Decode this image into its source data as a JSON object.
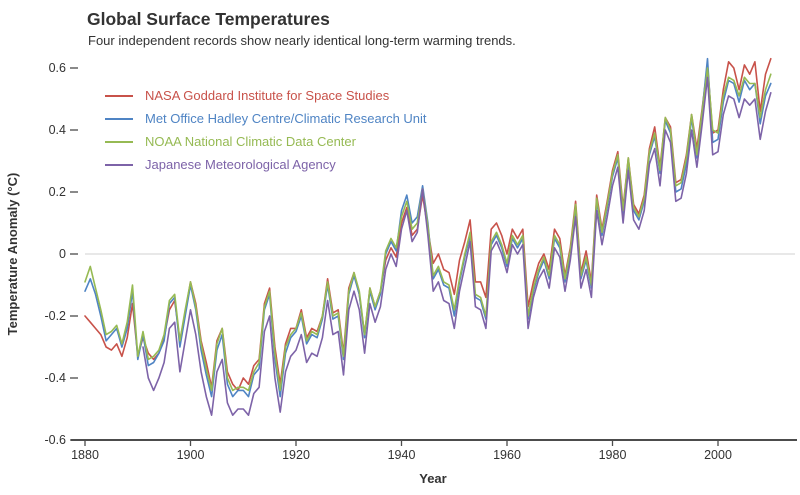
{
  "chart_data": {
    "type": "line",
    "title": "Global Surface Temperatures",
    "subtitle": "Four independent records show nearly identical long-term warming trends.",
    "xlabel": "Year",
    "ylabel": "Temperature Anomaly (°C)",
    "xlim": [
      1880,
      2013
    ],
    "ylim": [
      -0.6,
      0.65
    ],
    "grid": "horizontal zero line only",
    "legend_position": "top-left",
    "zero_line_color": "#d9d9d9",
    "axis_color": "#4c4c4c",
    "text_color": "#333333",
    "x_tick_labels": [
      "1880",
      "1900",
      "1920",
      "1940",
      "1960",
      "1980",
      "2000"
    ],
    "y_tick_labels": [
      "0.6",
      "0.4",
      "0.2",
      "0",
      "-0.2",
      "-0.4",
      "-0.6"
    ],
    "x_end_year": 2010,
    "series": [
      {
        "name": "NASA Goddard Institute for Space Studies",
        "color": "#c8524a",
        "start_year": 1880,
        "values": [
          -0.2,
          -0.22,
          -0.24,
          -0.26,
          -0.3,
          -0.31,
          -0.29,
          -0.33,
          -0.27,
          -0.16,
          -0.33,
          -0.27,
          -0.32,
          -0.34,
          -0.32,
          -0.27,
          -0.18,
          -0.15,
          -0.28,
          -0.19,
          -0.09,
          -0.16,
          -0.28,
          -0.35,
          -0.43,
          -0.28,
          -0.24,
          -0.38,
          -0.42,
          -0.44,
          -0.4,
          -0.42,
          -0.36,
          -0.34,
          -0.16,
          -0.11,
          -0.3,
          -0.42,
          -0.29,
          -0.24,
          -0.24,
          -0.18,
          -0.27,
          -0.24,
          -0.25,
          -0.2,
          -0.08,
          -0.19,
          -0.18,
          -0.32,
          -0.11,
          -0.06,
          -0.13,
          -0.26,
          -0.11,
          -0.17,
          -0.12,
          -0.02,
          0.02,
          -0.01,
          0.1,
          0.15,
          0.06,
          0.08,
          0.19,
          0.08,
          -0.03,
          0.0,
          -0.05,
          -0.06,
          -0.13,
          -0.02,
          0.04,
          0.11,
          -0.09,
          -0.09,
          -0.14,
          0.08,
          0.1,
          0.06,
          0.0,
          0.08,
          0.05,
          0.08,
          -0.17,
          -0.09,
          -0.03,
          0.0,
          -0.05,
          0.08,
          0.05,
          -0.07,
          0.02,
          0.17,
          -0.06,
          0.01,
          -0.09,
          0.19,
          0.08,
          0.17,
          0.27,
          0.33,
          0.15,
          0.31,
          0.16,
          0.13,
          0.19,
          0.34,
          0.41,
          0.28,
          0.44,
          0.41,
          0.23,
          0.24,
          0.32,
          0.45,
          0.34,
          0.47,
          0.61,
          0.39,
          0.4,
          0.53,
          0.62,
          0.6,
          0.53,
          0.61,
          0.58,
          0.62,
          0.46,
          0.58,
          0.63
        ]
      },
      {
        "name": "Met Office Hadley Centre/Climatic Research Unit",
        "color": "#4f84c4",
        "start_year": 1880,
        "values": [
          -0.12,
          -0.08,
          -0.13,
          -0.2,
          -0.28,
          -0.26,
          -0.24,
          -0.3,
          -0.24,
          -0.12,
          -0.34,
          -0.26,
          -0.36,
          -0.35,
          -0.32,
          -0.28,
          -0.16,
          -0.14,
          -0.3,
          -0.2,
          -0.1,
          -0.18,
          -0.31,
          -0.39,
          -0.46,
          -0.31,
          -0.26,
          -0.42,
          -0.46,
          -0.44,
          -0.44,
          -0.46,
          -0.39,
          -0.37,
          -0.18,
          -0.13,
          -0.34,
          -0.46,
          -0.32,
          -0.27,
          -0.25,
          -0.2,
          -0.29,
          -0.26,
          -0.27,
          -0.21,
          -0.1,
          -0.21,
          -0.2,
          -0.34,
          -0.13,
          -0.07,
          -0.13,
          -0.27,
          -0.12,
          -0.18,
          -0.13,
          0.0,
          0.04,
          0.01,
          0.14,
          0.19,
          0.1,
          0.12,
          0.22,
          0.1,
          -0.08,
          -0.05,
          -0.1,
          -0.11,
          -0.2,
          -0.09,
          -0.01,
          0.06,
          -0.14,
          -0.15,
          -0.21,
          0.03,
          0.06,
          0.02,
          -0.04,
          0.05,
          0.02,
          0.05,
          -0.21,
          -0.12,
          -0.06,
          -0.02,
          -0.08,
          0.05,
          0.02,
          -0.09,
          0.0,
          0.15,
          -0.08,
          -0.02,
          -0.11,
          0.17,
          0.06,
          0.15,
          0.25,
          0.31,
          0.13,
          0.3,
          0.14,
          0.11,
          0.17,
          0.32,
          0.38,
          0.26,
          0.43,
          0.39,
          0.2,
          0.21,
          0.29,
          0.44,
          0.31,
          0.46,
          0.63,
          0.36,
          0.37,
          0.49,
          0.56,
          0.55,
          0.49,
          0.56,
          0.53,
          0.55,
          0.42,
          0.51,
          0.55
        ]
      },
      {
        "name": "NOAA National Climatic Data Center",
        "color": "#96ba53",
        "start_year": 1880,
        "values": [
          -0.09,
          -0.04,
          -0.11,
          -0.18,
          -0.26,
          -0.25,
          -0.23,
          -0.29,
          -0.22,
          -0.1,
          -0.33,
          -0.25,
          -0.34,
          -0.33,
          -0.31,
          -0.26,
          -0.15,
          -0.13,
          -0.28,
          -0.18,
          -0.09,
          -0.17,
          -0.29,
          -0.37,
          -0.44,
          -0.29,
          -0.24,
          -0.4,
          -0.44,
          -0.43,
          -0.43,
          -0.44,
          -0.38,
          -0.35,
          -0.17,
          -0.12,
          -0.32,
          -0.44,
          -0.3,
          -0.26,
          -0.24,
          -0.19,
          -0.28,
          -0.25,
          -0.26,
          -0.2,
          -0.09,
          -0.2,
          -0.19,
          -0.33,
          -0.12,
          -0.06,
          -0.12,
          -0.26,
          -0.11,
          -0.17,
          -0.12,
          0.01,
          0.05,
          0.02,
          0.12,
          0.17,
          0.08,
          0.1,
          0.21,
          0.09,
          -0.07,
          -0.04,
          -0.09,
          -0.1,
          -0.18,
          -0.08,
          0.0,
          0.07,
          -0.13,
          -0.14,
          -0.2,
          0.04,
          0.07,
          0.03,
          -0.03,
          0.06,
          0.03,
          0.06,
          -0.2,
          -0.11,
          -0.05,
          -0.01,
          -0.07,
          0.06,
          0.03,
          -0.08,
          0.01,
          0.16,
          -0.07,
          -0.01,
          -0.1,
          0.18,
          0.07,
          0.16,
          0.26,
          0.32,
          0.14,
          0.31,
          0.15,
          0.12,
          0.18,
          0.33,
          0.39,
          0.27,
          0.44,
          0.4,
          0.22,
          0.23,
          0.31,
          0.45,
          0.32,
          0.46,
          0.6,
          0.4,
          0.39,
          0.51,
          0.57,
          0.56,
          0.51,
          0.57,
          0.55,
          0.55,
          0.44,
          0.53,
          0.58
        ]
      },
      {
        "name": "Japanese Meteorological Agency",
        "color": "#7d63a8",
        "start_year": 1891,
        "values": [
          -0.3,
          -0.4,
          -0.44,
          -0.4,
          -0.35,
          -0.24,
          -0.22,
          -0.38,
          -0.28,
          -0.18,
          -0.26,
          -0.38,
          -0.46,
          -0.52,
          -0.38,
          -0.34,
          -0.48,
          -0.52,
          -0.5,
          -0.5,
          -0.52,
          -0.45,
          -0.43,
          -0.25,
          -0.2,
          -0.4,
          -0.51,
          -0.38,
          -0.33,
          -0.31,
          -0.26,
          -0.35,
          -0.32,
          -0.33,
          -0.27,
          -0.15,
          -0.26,
          -0.25,
          -0.39,
          -0.18,
          -0.12,
          -0.18,
          -0.32,
          -0.16,
          -0.22,
          -0.17,
          -0.05,
          0.0,
          -0.04,
          0.08,
          0.14,
          0.04,
          0.07,
          0.21,
          0.06,
          -0.12,
          -0.09,
          -0.15,
          -0.16,
          -0.24,
          -0.12,
          -0.04,
          0.04,
          -0.17,
          -0.18,
          -0.24,
          0.01,
          0.04,
          0.0,
          -0.06,
          0.03,
          0.0,
          0.03,
          -0.24,
          -0.14,
          -0.08,
          -0.05,
          -0.11,
          0.02,
          -0.01,
          -0.12,
          -0.02,
          0.12,
          -0.11,
          -0.05,
          -0.14,
          0.14,
          0.03,
          0.12,
          0.22,
          0.28,
          0.1,
          0.27,
          0.11,
          0.08,
          0.14,
          0.29,
          0.34,
          0.22,
          0.4,
          0.36,
          0.17,
          0.18,
          0.26,
          0.4,
          0.28,
          0.42,
          0.57,
          0.32,
          0.33,
          0.45,
          0.51,
          0.5,
          0.44,
          0.5,
          0.48,
          0.5,
          0.37,
          0.46,
          0.52
        ]
      }
    ]
  }
}
